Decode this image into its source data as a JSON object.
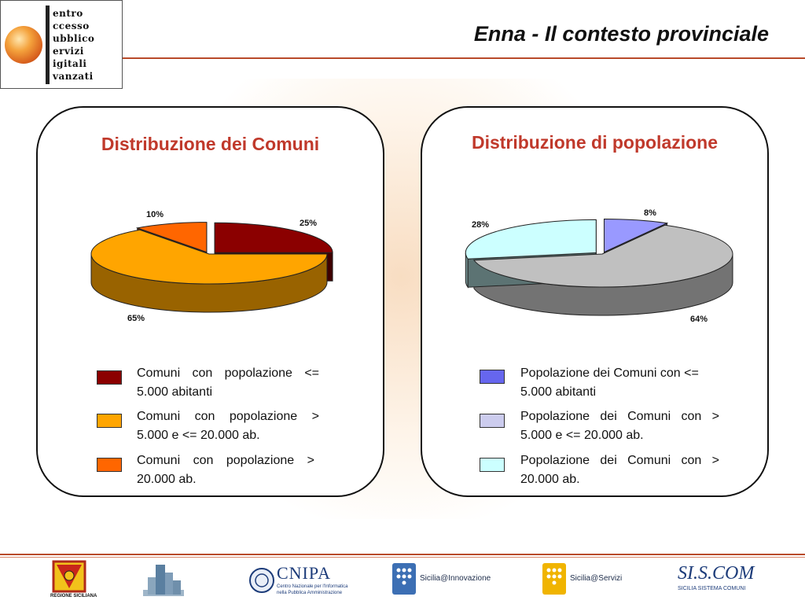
{
  "header": {
    "title": "Enna - Il contesto provinciale",
    "logo_words": [
      "entro",
      "ccesso",
      "ubblico",
      "ervizi",
      "igitali",
      "vanzati"
    ]
  },
  "panels": {
    "left": {
      "title": "Distribuzione dei Comuni",
      "legend": [
        {
          "label": "Comuni con popolazione <= 5.000 abitanti",
          "color": "#8b0000"
        },
        {
          "label": "Comuni con popolazione > 5.000 e <= 20.000 ab.",
          "color": "#ffa500"
        },
        {
          "label": "Comuni con popolazione > 20.000 ab.",
          "color": "#ff6600"
        }
      ]
    },
    "right": {
      "title": "Distribuzione di popolazione",
      "legend": [
        {
          "label": "Popolazione dei Comuni con <= 5.000 abitanti",
          "color": "#6666ee"
        },
        {
          "label": "Popolazione dei Comuni con > 5.000 e <= 20.000 ab.",
          "color": "#ccccee"
        },
        {
          "label": "Popolazione dei Comuni con > 20.000 ab.",
          "color": "#ccffff"
        }
      ]
    }
  },
  "chart_data": [
    {
      "type": "pie",
      "title": "Distribuzione dei Comuni",
      "categories": [
        "Comuni con popolazione <= 5.000 abitanti",
        "Comuni con popolazione > 5.000 e <= 20.000 ab.",
        "Comuni con popolazione > 20.000 ab."
      ],
      "values": [
        25,
        65,
        10
      ],
      "value_labels": [
        "25%",
        "65%",
        "10%"
      ],
      "colors": [
        "#8b0000",
        "#ffa500",
        "#ff6600"
      ],
      "exploded": [
        0,
        2
      ],
      "style": "3d"
    },
    {
      "type": "pie",
      "title": "Distribuzione di popolazione",
      "categories": [
        "Popolazione dei Comuni con <= 5.000 abitanti",
        "Popolazione dei Comuni con > 5.000 e <= 20.000 ab.",
        "Popolazione dei Comuni con > 20.000 ab."
      ],
      "values": [
        8,
        64,
        28
      ],
      "value_labels": [
        "8%",
        "64%",
        "28%"
      ],
      "colors": [
        "#9999ff",
        "#c0c0c0",
        "#ccffff"
      ],
      "exploded": [
        0,
        2
      ],
      "style": "3d"
    }
  ],
  "footer": {
    "regione_label": "REGIONE SICILIANA",
    "cnipa_label": "CNIPA",
    "cnipa_sub1": "Centro Nazionale per l'Informatica",
    "cnipa_sub2": "nella Pubblica Amministrazione",
    "innovazione_label": "Sicilia@Innovazione",
    "servizi_label": "Sicilia@Servizi",
    "siscom_label": "SI.S.COM",
    "siscom_sub": "SICILIA SISTEMA COMUNI"
  }
}
